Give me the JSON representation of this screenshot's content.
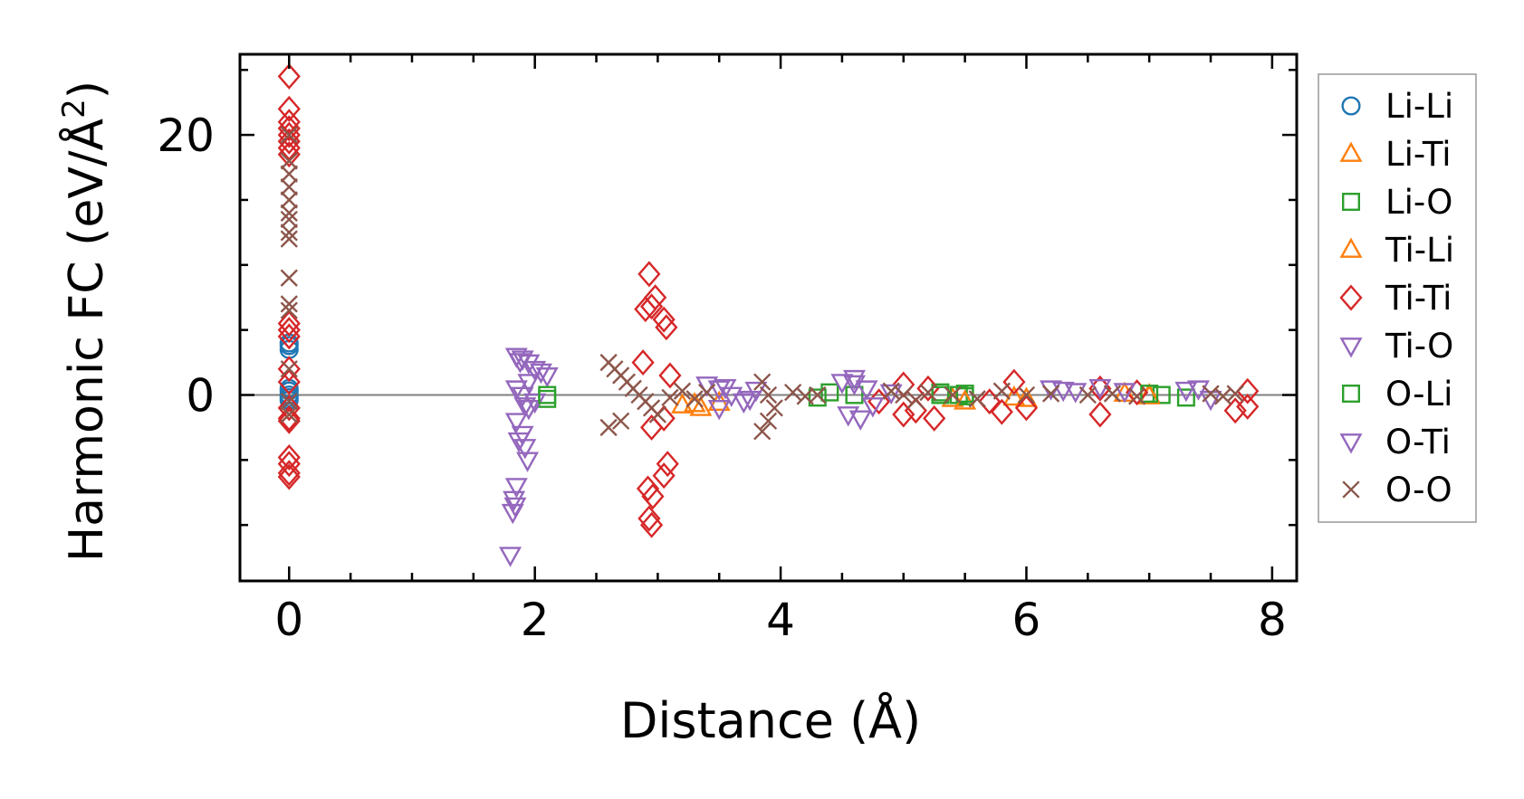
{
  "chart_data": {
    "type": "scatter",
    "title": "",
    "xlabel": "Distance (Å)",
    "ylabel_main": "Harmonic FC (eV/Å",
    "ylabel_sup": "2",
    "ylabel_close": ")",
    "xlim": [
      -0.4,
      8.2
    ],
    "ylim": [
      -14.3,
      26.2
    ],
    "xticks": [
      0,
      2,
      4,
      6,
      8
    ],
    "xtick_labels": [
      "0",
      "2",
      "4",
      "6",
      "8"
    ],
    "x_minor_step": 0.5,
    "yticks": [
      0,
      20
    ],
    "ytick_labels": [
      "0",
      "20"
    ],
    "y_minor_step": 5,
    "zero_line": true,
    "legend_position": "outside-right",
    "series": [
      {
        "name": "Li-Li",
        "marker": "circle",
        "color": "#1f77b4",
        "points": [
          [
            0,
            3.5
          ],
          [
            0,
            4.0
          ],
          [
            0,
            3.8
          ],
          [
            0,
            0.5
          ],
          [
            0,
            0.0
          ],
          [
            0,
            -0.4
          ],
          [
            0,
            0.3
          ],
          [
            0,
            -0.2
          ]
        ]
      },
      {
        "name": "Li-Ti",
        "marker": "triangle-up",
        "color": "#ff7f0e",
        "points": [
          [
            3.2,
            -0.8
          ],
          [
            3.35,
            -1.0
          ],
          [
            3.5,
            -0.6
          ],
          [
            5.4,
            -0.3
          ],
          [
            5.9,
            -0.2
          ],
          [
            6.8,
            0.1
          ],
          [
            7.0,
            0.0
          ]
        ]
      },
      {
        "name": "Li-O",
        "marker": "square",
        "color": "#2ca02c",
        "points": [
          [
            2.1,
            -0.3
          ],
          [
            4.4,
            0.2
          ],
          [
            4.6,
            0.0
          ],
          [
            5.3,
            0.2
          ],
          [
            5.45,
            0.0
          ],
          [
            5.5,
            -0.1
          ],
          [
            7.1,
            0.0
          ],
          [
            7.3,
            -0.2
          ]
        ]
      },
      {
        "name": "Ti-Li",
        "marker": "triangle-up",
        "color": "#ff7f0e",
        "points": [
          [
            3.3,
            -0.7
          ],
          [
            5.5,
            -0.5
          ],
          [
            6.0,
            -0.3
          ],
          [
            7.0,
            -0.1
          ]
        ]
      },
      {
        "name": "Ti-Ti",
        "marker": "diamond",
        "color": "#d62728",
        "points": [
          [
            0,
            24.5
          ],
          [
            0,
            22
          ],
          [
            0,
            21
          ],
          [
            0,
            20.5
          ],
          [
            0,
            20
          ],
          [
            0,
            19.5
          ],
          [
            0,
            19
          ],
          [
            0,
            18.5
          ],
          [
            0,
            5.5
          ],
          [
            0,
            5
          ],
          [
            0,
            4.5
          ],
          [
            0,
            2
          ],
          [
            0,
            1
          ],
          [
            0,
            -1
          ],
          [
            0,
            -1.8
          ],
          [
            0,
            -2
          ],
          [
            0,
            -4.8
          ],
          [
            0,
            -5.3
          ],
          [
            0,
            -6
          ],
          [
            0,
            -6.3
          ],
          [
            2.93,
            9.3
          ],
          [
            2.98,
            7.5
          ],
          [
            2.95,
            6.8
          ],
          [
            2.9,
            6.6
          ],
          [
            3.05,
            5.8
          ],
          [
            3.07,
            5.2
          ],
          [
            2.88,
            2.5
          ],
          [
            3.1,
            1.5
          ],
          [
            2.95,
            -2.5
          ],
          [
            3.05,
            -1.8
          ],
          [
            3.08,
            -5.3
          ],
          [
            3.05,
            -6.2
          ],
          [
            2.92,
            -7.2
          ],
          [
            2.96,
            -7.8
          ],
          [
            2.93,
            -9.5
          ],
          [
            2.95,
            -10
          ],
          [
            4.8,
            -0.5
          ],
          [
            5.0,
            0.8
          ],
          [
            5.0,
            -1.5
          ],
          [
            5.1,
            -1.2
          ],
          [
            5.2,
            0.5
          ],
          [
            5.25,
            -1.8
          ],
          [
            5.7,
            -0.5
          ],
          [
            5.8,
            -1.3
          ],
          [
            5.9,
            1.0
          ],
          [
            6.0,
            -1.0
          ],
          [
            6.6,
            0.5
          ],
          [
            6.6,
            -1.5
          ],
          [
            6.9,
            0.2
          ],
          [
            7.8,
            0.3
          ],
          [
            7.8,
            -0.9
          ],
          [
            7.7,
            -1.2
          ]
        ]
      },
      {
        "name": "Ti-O",
        "marker": "triangle-down",
        "color": "#9467bd",
        "points": [
          [
            1.85,
            3
          ],
          [
            1.9,
            2.8
          ],
          [
            1.95,
            2.5
          ],
          [
            2.0,
            2
          ],
          [
            2.1,
            1.5
          ],
          [
            1.95,
            1
          ],
          [
            1.85,
            0.5
          ],
          [
            1.9,
            0
          ],
          [
            2.0,
            -0.5
          ],
          [
            1.95,
            -1
          ],
          [
            1.85,
            -2
          ],
          [
            1.9,
            -3
          ],
          [
            1.92,
            -4
          ],
          [
            1.94,
            -5
          ],
          [
            1.85,
            -7
          ],
          [
            1.83,
            -8
          ],
          [
            1.84,
            -8.5
          ],
          [
            1.82,
            -9
          ],
          [
            1.8,
            -12.3
          ],
          [
            3.4,
            0.8
          ],
          [
            3.5,
            0.5
          ],
          [
            3.6,
            0
          ],
          [
            3.7,
            -0.5
          ],
          [
            3.5,
            -1.0
          ],
          [
            3.8,
            0.4
          ],
          [
            4.5,
            1.0
          ],
          [
            4.6,
            1.3
          ],
          [
            4.7,
            0.5
          ],
          [
            4.55,
            -1.5
          ],
          [
            4.65,
            -1.8
          ],
          [
            4.9,
            0.2
          ],
          [
            6.2,
            0.5
          ],
          [
            6.4,
            0.3
          ],
          [
            6.6,
            0.6
          ],
          [
            6.8,
            0.3
          ],
          [
            7.3,
            0.4
          ],
          [
            7.4,
            0.5
          ]
        ]
      },
      {
        "name": "O-Li",
        "marker": "square",
        "color": "#2ca02c",
        "points": [
          [
            2.1,
            0.0
          ],
          [
            4.3,
            -0.2
          ],
          [
            5.3,
            0.0
          ],
          [
            5.5,
            0.1
          ],
          [
            7.0,
            0.1
          ]
        ]
      },
      {
        "name": "O-Ti",
        "marker": "triangle-down",
        "color": "#9467bd",
        "points": [
          [
            1.88,
            2.6
          ],
          [
            2.05,
            1.8
          ],
          [
            1.92,
            -0.8
          ],
          [
            1.87,
            -3.5
          ],
          [
            3.55,
            0.6
          ],
          [
            3.75,
            -0.3
          ],
          [
            4.6,
            0.9
          ],
          [
            4.75,
            -0.8
          ],
          [
            6.3,
            0.4
          ],
          [
            7.5,
            -0.3
          ]
        ]
      },
      {
        "name": "O-O",
        "marker": "x",
        "color": "#8c564b",
        "points": [
          [
            0,
            20
          ],
          [
            0,
            18
          ],
          [
            0,
            17
          ],
          [
            0,
            16
          ],
          [
            0,
            15
          ],
          [
            0,
            14
          ],
          [
            0,
            13.5
          ],
          [
            0,
            12.5
          ],
          [
            0,
            12
          ],
          [
            0,
            9
          ],
          [
            0,
            7
          ],
          [
            0,
            6.5
          ],
          [
            0,
            2
          ],
          [
            0,
            -0.5
          ],
          [
            0,
            -1.5
          ],
          [
            2.6,
            2.5
          ],
          [
            2.65,
            2
          ],
          [
            2.7,
            1.5
          ],
          [
            2.75,
            1
          ],
          [
            2.8,
            0.5
          ],
          [
            2.85,
            0
          ],
          [
            2.9,
            -0.5
          ],
          [
            2.95,
            -1
          ],
          [
            3.0,
            -1.5
          ],
          [
            2.7,
            -2
          ],
          [
            2.6,
            -2.5
          ],
          [
            3.1,
            -0.2
          ],
          [
            3.2,
            0.3
          ],
          [
            3.3,
            -0.3
          ],
          [
            3.4,
            0.2
          ],
          [
            3.85,
            1
          ],
          [
            3.9,
            0
          ],
          [
            3.95,
            -1
          ],
          [
            3.9,
            -2
          ],
          [
            3.85,
            -2.8
          ],
          [
            4.1,
            0.2
          ],
          [
            4.2,
            -0.1
          ],
          [
            4.3,
            0
          ],
          [
            4.9,
            0.3
          ],
          [
            5.0,
            0
          ],
          [
            5.1,
            -0.4
          ],
          [
            5.2,
            0.2
          ],
          [
            5.4,
            0
          ],
          [
            5.6,
            -0.3
          ],
          [
            5.8,
            0.3
          ],
          [
            6.0,
            0
          ],
          [
            6.2,
            0.1
          ],
          [
            6.5,
            0
          ],
          [
            6.7,
            0.1
          ],
          [
            6.9,
            -0.1
          ],
          [
            7.5,
            0.1
          ],
          [
            7.6,
            -0.1
          ],
          [
            7.7,
            0.1
          ]
        ]
      }
    ]
  }
}
